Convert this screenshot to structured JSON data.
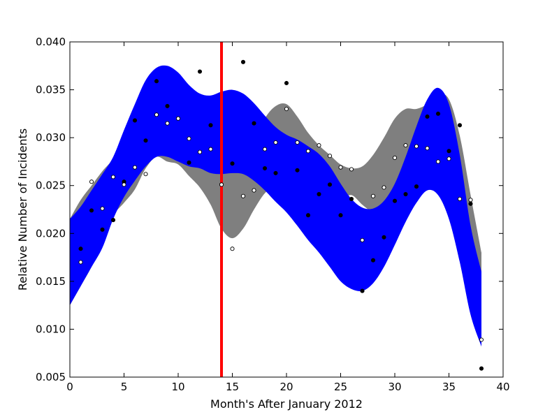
{
  "chart_data": {
    "type": "scatter",
    "title": "",
    "xlabel": "Month's After January 2012",
    "ylabel": "Relative Number of Incidents",
    "xlim": [
      0,
      40
    ],
    "ylim": [
      0.005,
      0.04
    ],
    "xticks": [
      0,
      5,
      10,
      15,
      20,
      25,
      30,
      35,
      40
    ],
    "yticks": [
      0.005,
      0.01,
      0.015,
      0.02,
      0.025,
      0.03,
      0.035,
      0.04
    ],
    "xtick_labels": [
      "0",
      "5",
      "10",
      "15",
      "20",
      "25",
      "30",
      "35",
      "40"
    ],
    "ytick_labels": [
      "0.005",
      "0.010",
      "0.015",
      "0.020",
      "0.025",
      "0.030",
      "0.035",
      "0.040"
    ],
    "grid": false,
    "legend": "none",
    "vertical_line": {
      "x": 14,
      "color": "#ff0000"
    },
    "colors": {
      "band_blue": "#0000ff",
      "band_gray": "#7f7f7f",
      "filled_points": "#000000",
      "open_points": "#000000"
    },
    "series": [
      {
        "marker": "filled",
        "x": [
          1,
          2,
          3,
          4,
          5,
          6,
          7,
          8,
          9,
          10,
          11,
          12,
          13,
          14,
          15,
          16,
          17,
          18,
          19,
          20,
          21,
          22,
          23,
          24,
          25,
          26,
          27,
          28,
          29,
          30,
          31,
          32,
          33,
          34,
          35,
          36,
          37,
          38
        ],
        "y": [
          0.0184,
          0.0224,
          0.0204,
          0.0214,
          0.0254,
          0.0318,
          0.0297,
          0.0359,
          0.0333,
          0.032,
          0.0274,
          0.0369,
          0.0313,
          0.0251,
          0.0273,
          0.0379,
          0.0315,
          0.0268,
          0.0263,
          0.0357,
          0.0266,
          0.0219,
          0.0241,
          0.0251,
          0.0219,
          0.0236,
          0.014,
          0.0172,
          0.0196,
          0.0234,
          0.0241,
          0.0249,
          0.0322,
          0.0325,
          0.0286,
          0.0313,
          0.0231,
          0.0059
        ]
      },
      {
        "marker": "open",
        "x": [
          1,
          2,
          3,
          4,
          5,
          6,
          7,
          8,
          9,
          10,
          11,
          12,
          13,
          14,
          15,
          16,
          17,
          18,
          19,
          20,
          21,
          22,
          23,
          24,
          25,
          26,
          27,
          28,
          29,
          30,
          31,
          32,
          33,
          34,
          35,
          36,
          37,
          38
        ],
        "y": [
          0.017,
          0.0254,
          0.0226,
          0.0259,
          0.0251,
          0.0269,
          0.0262,
          0.0324,
          0.0315,
          0.032,
          0.0299,
          0.0285,
          0.0288,
          0.0251,
          0.0184,
          0.0239,
          0.0245,
          0.0288,
          0.0295,
          0.033,
          0.0295,
          0.0286,
          0.0292,
          0.0281,
          0.0269,
          0.0267,
          0.0193,
          0.0239,
          0.0248,
          0.0279,
          0.0292,
          0.0291,
          0.0289,
          0.0275,
          0.0278,
          0.0236,
          0.0235,
          0.0089
        ]
      }
    ],
    "bands": [
      {
        "color": "#7f7f7f",
        "x": [
          0,
          1,
          2,
          3,
          4,
          5,
          6,
          7,
          8,
          9,
          10,
          11,
          12,
          13,
          14,
          15,
          16,
          17,
          18,
          19,
          20,
          21,
          22,
          23,
          24,
          25,
          26,
          27,
          28,
          29,
          30,
          31,
          32,
          33,
          34,
          35,
          36,
          37,
          38
        ],
        "upper": [
          0.0215,
          0.0235,
          0.025,
          0.0265,
          0.0278,
          0.0298,
          0.0325,
          0.0352,
          0.037,
          0.0372,
          0.0365,
          0.0352,
          0.034,
          0.032,
          0.03,
          0.0285,
          0.0282,
          0.0295,
          0.032,
          0.0333,
          0.0335,
          0.0322,
          0.0305,
          0.0292,
          0.0282,
          0.0272,
          0.0268,
          0.027,
          0.0282,
          0.03,
          0.032,
          0.033,
          0.033,
          0.0335,
          0.0345,
          0.034,
          0.0302,
          0.024,
          0.018
        ],
        "lower": [
          0.0125,
          0.0145,
          0.0165,
          0.0188,
          0.0218,
          0.0232,
          0.0246,
          0.0268,
          0.028,
          0.0275,
          0.0272,
          0.026,
          0.0248,
          0.023,
          0.0205,
          0.0195,
          0.0205,
          0.0225,
          0.0242,
          0.025,
          0.025,
          0.0245,
          0.024,
          0.0236,
          0.0232,
          0.0235,
          0.024,
          0.023,
          0.0222,
          0.0222,
          0.023,
          0.0248,
          0.0262,
          0.0264,
          0.025,
          0.0225,
          0.0185,
          0.013,
          0.0082
        ]
      },
      {
        "color": "#0000ff",
        "x": [
          0,
          1,
          2,
          3,
          4,
          5,
          6,
          7,
          8,
          9,
          10,
          11,
          12,
          13,
          14,
          15,
          16,
          17,
          18,
          19,
          20,
          21,
          22,
          23,
          24,
          25,
          26,
          27,
          28,
          29,
          30,
          31,
          32,
          33,
          34,
          35,
          36,
          37,
          38
        ],
        "upper": [
          0.0215,
          0.0228,
          0.0245,
          0.0262,
          0.028,
          0.0308,
          0.0335,
          0.036,
          0.0373,
          0.0375,
          0.0368,
          0.0355,
          0.0346,
          0.0344,
          0.0348,
          0.035,
          0.0346,
          0.0336,
          0.0323,
          0.0311,
          0.0303,
          0.0298,
          0.0291,
          0.0283,
          0.027,
          0.0252,
          0.0236,
          0.0227,
          0.0226,
          0.0234,
          0.0252,
          0.028,
          0.0312,
          0.034,
          0.0352,
          0.0335,
          0.0282,
          0.0208,
          0.016
        ],
        "lower": [
          0.0125,
          0.0145,
          0.0165,
          0.0185,
          0.0215,
          0.0238,
          0.0255,
          0.027,
          0.028,
          0.028,
          0.0275,
          0.027,
          0.0268,
          0.0263,
          0.0262,
          0.0263,
          0.0262,
          0.0255,
          0.0245,
          0.0233,
          0.0222,
          0.0208,
          0.0193,
          0.018,
          0.0165,
          0.015,
          0.0142,
          0.014,
          0.0148,
          0.0165,
          0.0188,
          0.0212,
          0.0232,
          0.0245,
          0.024,
          0.0215,
          0.017,
          0.0115,
          0.0082
        ]
      }
    ]
  }
}
